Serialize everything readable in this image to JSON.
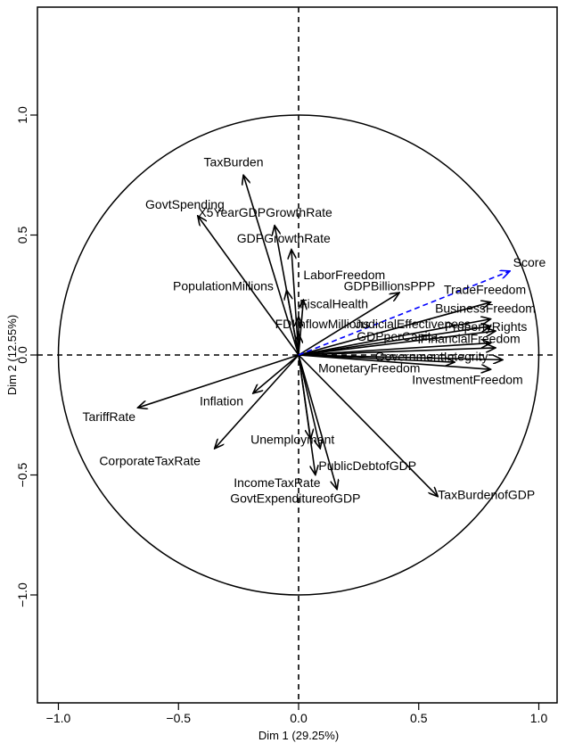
{
  "chart_data": {
    "type": "scatter",
    "subtype": "pca-variable-correlation-circle",
    "xlabel": "Dim 1 (29.25%)",
    "ylabel": "Dim 2 (12.55%)",
    "xlim": [
      -1.1,
      1.1
    ],
    "ylim": [
      -1.4,
      1.4
    ],
    "xticks": [
      -1.0,
      -0.5,
      0.0,
      0.5,
      1.0
    ],
    "xtick_labels": [
      "-1.0",
      "-0.5",
      "0.0",
      "0.5",
      "1.0"
    ],
    "yticks": [
      -1.0,
      -0.5,
      0.0,
      0.5,
      1.0
    ],
    "ytick_labels": [
      "-1.0",
      "-0.5",
      "0.0",
      "0.5",
      "1.0"
    ],
    "grid": false,
    "unit_circle": true,
    "reference_lines": "dashed at x=0 and y=0",
    "colors": {
      "variables": "#000000",
      "supplementary": "#0000ff"
    },
    "variables": [
      {
        "label": "TaxBurden",
        "x": -0.23,
        "y": 0.75
      },
      {
        "label": "GovtSpending",
        "x": -0.42,
        "y": 0.58
      },
      {
        "label": "X5YearGDPGrowthRate",
        "x": -0.1,
        "y": 0.54
      },
      {
        "label": "GDPGrowthRate",
        "x": -0.03,
        "y": 0.44
      },
      {
        "label": "PopulationMillions",
        "x": -0.05,
        "y": 0.27
      },
      {
        "label": "LaborFreedom",
        "x": 0.02,
        "y": 0.23
      },
      {
        "label": "FiscalHealth",
        "x": 0.0,
        "y": 0.16
      },
      {
        "label": "FDIInflowMillions",
        "x": 0.0,
        "y": 0.09
      },
      {
        "label": "GDPBillionsPPP",
        "x": 0.42,
        "y": 0.26
      },
      {
        "label": "TradeFreedom",
        "x": 0.8,
        "y": 0.22
      },
      {
        "label": "BusinessFreedom",
        "x": 0.8,
        "y": 0.15
      },
      {
        "label": "JudicialEffectiveness",
        "x": 0.8,
        "y": 0.12
      },
      {
        "label": "PropertyRights",
        "x": 0.82,
        "y": 0.1
      },
      {
        "label": "GDPperCapita",
        "x": 0.8,
        "y": 0.05
      },
      {
        "label": "FinancialFreedom",
        "x": 0.82,
        "y": 0.03
      },
      {
        "label": "GovernmentIntegrity",
        "x": 0.85,
        "y": -0.02
      },
      {
        "label": "MonetaryFreedom",
        "x": 0.65,
        "y": -0.03
      },
      {
        "label": "InvestmentFreedom",
        "x": 0.8,
        "y": -0.06
      },
      {
        "label": "TariffRate",
        "x": -0.67,
        "y": -0.22
      },
      {
        "label": "Inflation",
        "x": -0.19,
        "y": -0.16
      },
      {
        "label": "CorporateTaxRate",
        "x": -0.35,
        "y": -0.39
      },
      {
        "label": "Unemployment",
        "x": 0.05,
        "y": -0.35
      },
      {
        "label": "PublicDebtofGDP",
        "x": 0.09,
        "y": -0.39
      },
      {
        "label": "IncomeTaxRate",
        "x": 0.07,
        "y": -0.5
      },
      {
        "label": "GovtExpenditureofGDP",
        "x": 0.16,
        "y": -0.56
      },
      {
        "label": "TaxBurdenofGDP",
        "x": 0.58,
        "y": -0.59
      }
    ],
    "supplementary": [
      {
        "label": "Score",
        "x": 0.88,
        "y": 0.35
      }
    ],
    "printed_labels": [
      {
        "text": "TaxBurden",
        "x": -0.395,
        "y": 0.787,
        "color": "#000000"
      },
      {
        "text": "GovtSpending",
        "x": -0.638,
        "y": 0.61,
        "color": "#000000"
      },
      {
        "text": "X5YearGDPGrowthRate",
        "x": -0.418,
        "y": 0.577,
        "color": "#000000"
      },
      {
        "text": "GDPGrowthRate",
        "x": -0.257,
        "y": 0.468,
        "color": "#000000"
      },
      {
        "text": "PopulationMillions",
        "x": -0.523,
        "y": 0.269,
        "color": "#000000"
      },
      {
        "text": "LaborFreedom",
        "x": 0.02,
        "y": 0.316,
        "color": "#000000"
      },
      {
        "text": "GDPBillionsPPP",
        "x": 0.188,
        "y": 0.269,
        "color": "#000000"
      },
      {
        "text": "TradeFreedom",
        "x": 0.605,
        "y": 0.254,
        "color": "#000000"
      },
      {
        "text": "FiscalHealth",
        "x": 0.004,
        "y": 0.195,
        "color": "#000000"
      },
      {
        "text": "BusinessFreedom",
        "x": 0.568,
        "y": 0.176,
        "color": "#000000"
      },
      {
        "text": "FDIInflowMillions",
        "x": -0.098,
        "y": 0.112,
        "color": "#000000"
      },
      {
        "text": "JudicialEffectiveness",
        "x": 0.235,
        "y": 0.112,
        "color": "#000000"
      },
      {
        "text": "PropertyRights",
        "x": 0.608,
        "y": 0.1,
        "color": "#000000"
      },
      {
        "text": "GDPperCapita",
        "x": 0.242,
        "y": 0.06,
        "color": "#000000"
      },
      {
        "text": "FinancialFreedom",
        "x": 0.507,
        "y": 0.05,
        "color": "#000000"
      },
      {
        "text": "GovernmentIntegrity",
        "x": 0.318,
        "y": -0.025,
        "color": "#000000"
      },
      {
        "text": "MonetaryFreedom",
        "x": 0.082,
        "y": -0.072,
        "color": "#000000"
      },
      {
        "text": "InvestmentFreedom",
        "x": 0.472,
        "y": -0.12,
        "color": "#000000"
      },
      {
        "text": "TariffRate",
        "x": -0.9,
        "y": -0.275,
        "color": "#000000"
      },
      {
        "text": "Inflation",
        "x": -0.412,
        "y": -0.21,
        "color": "#000000"
      },
      {
        "text": "Unemployment",
        "x": -0.2,
        "y": -0.37,
        "color": "#000000"
      },
      {
        "text": "CorporateTaxRate",
        "x": -0.83,
        "y": -0.46,
        "color": "#000000"
      },
      {
        "text": "PublicDebtofGDP",
        "x": 0.083,
        "y": -0.48,
        "color": "#000000"
      },
      {
        "text": "IncomeTaxRate",
        "x": -0.27,
        "y": -0.55,
        "color": "#000000"
      },
      {
        "text": "TaxBurdenofGDP",
        "x": 0.58,
        "y": -0.6,
        "color": "#000000"
      },
      {
        "text": "GovtExpenditureofGDP",
        "x": -0.285,
        "y": -0.615,
        "color": "#000000"
      },
      {
        "text": "Score",
        "x": 0.893,
        "y": 0.368,
        "color": "#0000ff"
      }
    ]
  }
}
